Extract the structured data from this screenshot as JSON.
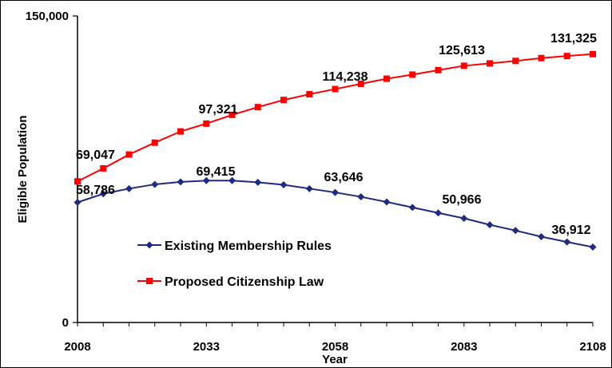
{
  "chart_data": {
    "type": "line",
    "xlabel": "Year",
    "ylabel": "Eligible Population",
    "xlim": [
      2008,
      2108
    ],
    "ylim": [
      0,
      150000
    ],
    "x_ticks": [
      "2008",
      "2033",
      "2058",
      "2083",
      "2108"
    ],
    "y_ticks": [
      "0",
      "150,000"
    ],
    "x": [
      2008,
      2013,
      2018,
      2023,
      2028,
      2033,
      2038,
      2043,
      2048,
      2053,
      2058,
      2063,
      2068,
      2073,
      2078,
      2083,
      2088,
      2093,
      2098,
      2103,
      2108
    ],
    "grid": false,
    "legend_position": "lower-left",
    "series": [
      {
        "name": "Existing Membership Rules",
        "color": "#1f2a80",
        "marker": "diamond",
        "values": [
          58786,
          63000,
          65500,
          67600,
          68800,
          69415,
          69415,
          68600,
          67400,
          65500,
          63646,
          61500,
          59000,
          56300,
          53600,
          50966,
          47800,
          45000,
          42000,
          39400,
          36912
        ]
      },
      {
        "name": "Proposed Citizenship Law",
        "color": "#ff0000",
        "marker": "square",
        "values": [
          69047,
          75400,
          82200,
          88000,
          93500,
          97321,
          101600,
          105400,
          108900,
          111700,
          114238,
          116800,
          119300,
          121300,
          123500,
          125613,
          126800,
          128000,
          129400,
          130400,
          131325
        ]
      }
    ],
    "data_labels": [
      {
        "series": 0,
        "index": 0,
        "text": "58,786"
      },
      {
        "series": 0,
        "index": 5,
        "text": "69,415"
      },
      {
        "series": 0,
        "index": 10,
        "text": "63,646"
      },
      {
        "series": 0,
        "index": 15,
        "text": "50,966"
      },
      {
        "series": 0,
        "index": 20,
        "text": "36,912"
      },
      {
        "series": 1,
        "index": 0,
        "text": "69,047"
      },
      {
        "series": 1,
        "index": 5,
        "text": "97,321"
      },
      {
        "series": 1,
        "index": 10,
        "text": "114,238"
      },
      {
        "series": 1,
        "index": 15,
        "text": "125,613"
      },
      {
        "series": 1,
        "index": 20,
        "text": "131,325"
      }
    ]
  }
}
